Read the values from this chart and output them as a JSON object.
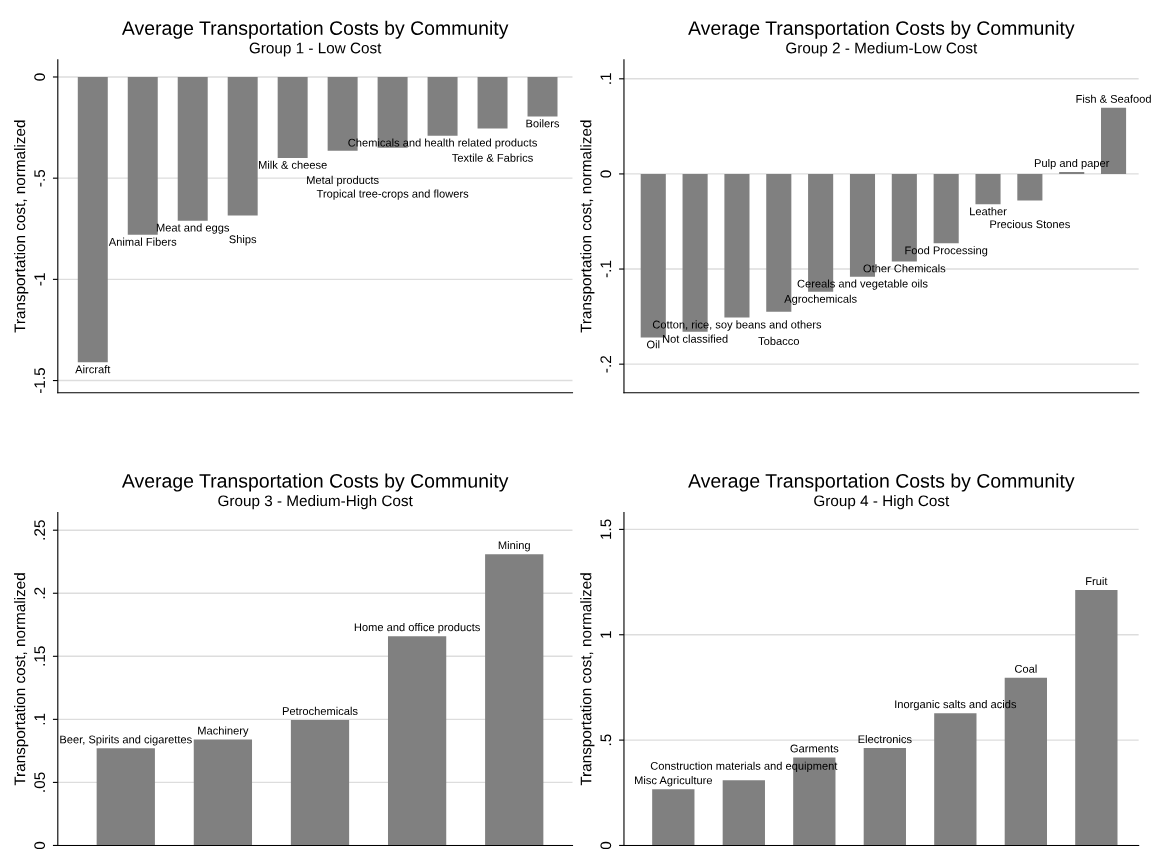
{
  "chart_data": [
    {
      "type": "bar",
      "title": "Average Transportation Costs by Community",
      "subtitle": "Group 1 - Low Cost",
      "ylabel": "Transportation cost, normalized",
      "color": "#808080",
      "grid": "y",
      "tick_labels": "y",
      "categories": [
        "Aircraft",
        "Animal Fibers",
        "Meat and eggs",
        "Ships",
        "Milk & cheese",
        "Metal products",
        "Tropical tree-crops and flowers",
        "Chemicals and health related products",
        "Textile & Fabrics",
        "Boilers"
      ],
      "values": [
        -1.41,
        -0.78,
        -0.71,
        -0.685,
        -0.4,
        -0.365,
        -0.35,
        -0.29,
        -0.255,
        -0.195
      ],
      "ylim": [
        -1.56,
        0.085
      ],
      "yticks": [
        {
          "value": -1.5,
          "label": "-1.5"
        },
        {
          "value": -1,
          "label": "-1"
        },
        {
          "value": -0.5,
          "label": "-.5"
        },
        0
      ]
    },
    {
      "type": "bar",
      "title": "Average Transportation Costs by Community",
      "subtitle": "Group 2 - Medium-Low Cost",
      "ylabel": "Transportation cost, normalized",
      "color": "#808080",
      "grid": "y",
      "tick_labels": "y",
      "categories": [
        "Oil",
        "Not classified",
        "Cotton, rice, soy beans and others",
        "Tobacco",
        "Agrochemicals",
        "Cereals and vegetable oils",
        "Other Chemicals",
        "Food Processing",
        "Leather",
        "Precious Stones",
        "Pulp and paper",
        "Fish & Seafood"
      ],
      "values": [
        -0.172,
        -0.166,
        -0.151,
        -0.145,
        -0.124,
        -0.108,
        -0.092,
        -0.073,
        -0.032,
        -0.028,
        0.002,
        0.0695
      ],
      "ylim": [
        -0.23,
        0.12
      ],
      "yticks": [
        {
          "value": -0.2,
          "label": "-.2"
        },
        {
          "value": -0.1,
          "label": "-.1"
        },
        0,
        {
          "value": 0.1,
          "label": ".1"
        }
      ]
    },
    {
      "type": "bar",
      "title": "Average Transportation Costs by Community",
      "subtitle": "Group 3 - Medium-High Cost",
      "ylabel": "Transportation cost, normalized",
      "color": "#808080",
      "grid": "y",
      "tick_labels": "y",
      "categories": [
        "Beer, Spirits and cigarettes",
        "Machinery",
        "Petrochemicals",
        "Home and office products",
        "Mining"
      ],
      "values": [
        0.077,
        0.084,
        0.0995,
        0.166,
        0.231
      ],
      "ylim": [
        0,
        0.264
      ],
      "yticks": [
        0,
        {
          "value": 0.05,
          "label": ".05"
        },
        {
          "value": 0.1,
          "label": ".1"
        },
        {
          "value": 0.15,
          "label": ".15"
        },
        {
          "value": 0.2,
          "label": ".2"
        },
        {
          "value": 0.25,
          "label": ".25"
        }
      ]
    },
    {
      "type": "bar",
      "title": "Average Transportation Costs by Community",
      "subtitle": "Group 4 - High Cost",
      "ylabel": "Transportation cost, normalized",
      "color": "#808080",
      "grid": "y",
      "tick_labels": "y",
      "categories": [
        "Misc Agriculture",
        "Construction materials and equipment",
        "Garments",
        "Electronics",
        "Inorganic salts and acids",
        "Coal",
        "Fruit"
      ],
      "values": [
        0.267,
        0.309,
        0.418,
        0.462,
        0.628,
        0.796,
        1.212
      ],
      "ylim": [
        0,
        1.58
      ],
      "yticks": [
        0,
        {
          "value": 0.5,
          "label": ".5"
        },
        {
          "value": 1,
          "label": "1"
        },
        {
          "value": 1.5,
          "label": "1.5"
        }
      ]
    }
  ]
}
